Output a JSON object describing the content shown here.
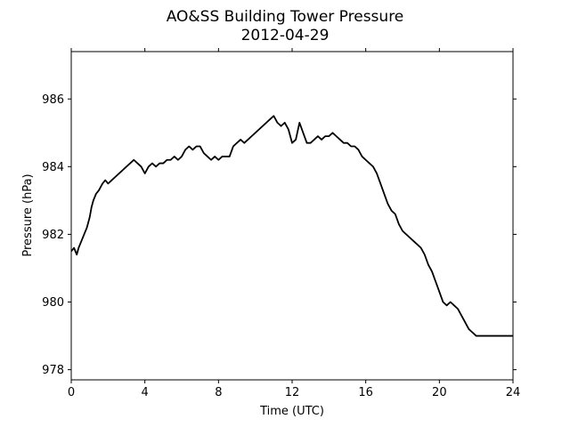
{
  "chart_data": {
    "type": "line",
    "title": "AO&SS Building Tower Pressure",
    "subtitle": "2012-04-29",
    "xlabel": "Time (UTC)",
    "ylabel": "Pressure (hPa)",
    "xlim": [
      0,
      24
    ],
    "ylim": [
      977.7,
      987.4
    ],
    "xticks": [
      0,
      4,
      8,
      12,
      16,
      20,
      24
    ],
    "yticks": [
      978,
      980,
      982,
      984,
      986
    ],
    "grid": false,
    "line_color": "#000000",
    "series": [
      {
        "x": [
          0,
          0.15,
          0.3,
          0.4,
          0.55,
          0.7,
          0.85,
          1.0,
          1.1,
          1.2,
          1.35,
          1.5,
          1.7,
          1.85,
          2.0,
          2.2,
          2.4,
          2.6,
          2.8,
          3.0,
          3.2,
          3.4,
          3.6,
          3.8,
          4.0,
          4.2,
          4.4,
          4.6,
          4.8,
          5.0,
          5.2,
          5.4,
          5.6,
          5.8,
          6.0,
          6.2,
          6.4,
          6.6,
          6.8,
          7.0,
          7.2,
          7.4,
          7.6,
          7.8,
          8.0,
          8.2,
          8.4,
          8.6,
          8.8,
          9.0,
          9.2,
          9.4,
          9.6,
          9.8,
          10.0,
          10.2,
          10.4,
          10.6,
          10.8,
          11.0,
          11.2,
          11.4,
          11.6,
          11.8,
          12.0,
          12.2,
          12.4,
          12.6,
          12.8,
          13.0,
          13.2,
          13.4,
          13.6,
          13.8,
          14.0,
          14.2,
          14.4,
          14.6,
          14.8,
          15.0,
          15.2,
          15.4,
          15.6,
          15.8,
          16.0,
          16.2,
          16.4,
          16.6,
          16.8,
          17.0,
          17.2,
          17.4,
          17.6,
          17.8,
          18.0,
          18.2,
          18.4,
          18.6,
          18.8,
          19.0,
          19.2,
          19.4,
          19.6,
          19.8,
          20.0,
          20.2,
          20.4,
          20.6,
          20.8,
          21.0,
          21.2,
          21.4,
          21.6,
          21.8,
          22.0,
          22.2,
          22.4,
          22.6,
          22.8,
          23.0,
          23.2,
          23.4,
          23.6,
          23.8,
          24.0
        ],
        "values": [
          981.5,
          981.6,
          981.4,
          981.6,
          981.8,
          982.0,
          982.2,
          982.5,
          982.8,
          983.0,
          983.2,
          983.3,
          983.5,
          983.6,
          983.5,
          983.6,
          983.7,
          983.8,
          983.9,
          984.0,
          984.1,
          984.2,
          984.1,
          984.0,
          983.8,
          984.0,
          984.1,
          984.0,
          984.1,
          984.1,
          984.2,
          984.2,
          984.3,
          984.2,
          984.3,
          984.5,
          984.6,
          984.5,
          984.6,
          984.6,
          984.4,
          984.3,
          984.2,
          984.3,
          984.2,
          984.3,
          984.3,
          984.3,
          984.6,
          984.7,
          984.8,
          984.7,
          984.8,
          984.9,
          985.0,
          985.1,
          985.2,
          985.3,
          985.4,
          985.5,
          985.3,
          985.2,
          985.3,
          985.1,
          984.7,
          984.8,
          985.3,
          985.0,
          984.7,
          984.7,
          984.8,
          984.9,
          984.8,
          984.9,
          984.9,
          985.0,
          984.9,
          984.8,
          984.7,
          984.7,
          984.6,
          984.6,
          984.5,
          984.3,
          984.2,
          984.1,
          984.0,
          983.8,
          983.5,
          983.2,
          982.9,
          982.7,
          982.6,
          982.3,
          982.1,
          982.0,
          981.9,
          981.8,
          981.7,
          981.6,
          981.4,
          981.1,
          980.9,
          980.6,
          980.3,
          980.0,
          979.9,
          980.0,
          979.9,
          979.8,
          979.6,
          979.4,
          979.2,
          979.1,
          979.0,
          979.0,
          979.0,
          979.0,
          979.0,
          979.0,
          979.0,
          979.0,
          979.0,
          979.0,
          979.0
        ]
      }
    ]
  }
}
